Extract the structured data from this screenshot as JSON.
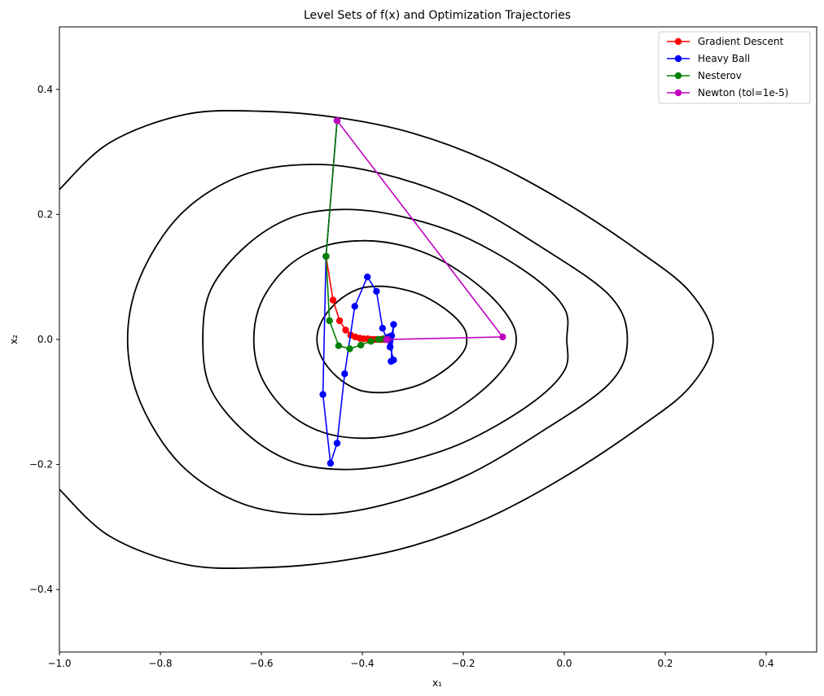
{
  "chart_data": {
    "type": "line",
    "title": "Level Sets of f(x) and Optimization Trajectories",
    "xlabel": "x₁",
    "ylabel": "x₂",
    "xlim": [
      -1.0,
      0.5
    ],
    "ylim": [
      -0.5,
      0.5
    ],
    "xticks": [
      -1.0,
      -0.8,
      -0.6,
      -0.4,
      -0.2,
      0.0,
      0.2,
      0.4
    ],
    "xtick_labels": [
      "−1.0",
      "−0.8",
      "−0.6",
      "−0.4",
      "−0.2",
      "0.0",
      "0.2",
      "0.4"
    ],
    "yticks": [
      -0.4,
      -0.2,
      0.0,
      0.2,
      0.4
    ],
    "ytick_labels": [
      "−0.4",
      "−0.2",
      "0.0",
      "0.2",
      "0.4"
    ],
    "grid": false,
    "legend_position": "top-right",
    "contours": [
      {
        "color": "#000000",
        "points": [
          [
            -0.37,
            0.085
          ],
          [
            -0.33,
            0.082
          ],
          [
            -0.28,
            0.07
          ],
          [
            -0.23,
            0.045
          ],
          [
            -0.2,
            0.02
          ],
          [
            -0.193,
            0.0
          ],
          [
            -0.2,
            -0.02
          ],
          [
            -0.23,
            -0.045
          ],
          [
            -0.28,
            -0.07
          ],
          [
            -0.33,
            -0.082
          ],
          [
            -0.37,
            -0.085
          ],
          [
            -0.41,
            -0.08
          ],
          [
            -0.45,
            -0.06
          ],
          [
            -0.48,
            -0.03
          ],
          [
            -0.49,
            0.0
          ],
          [
            -0.48,
            0.03
          ],
          [
            -0.45,
            0.06
          ],
          [
            -0.41,
            0.08
          ],
          [
            -0.37,
            0.085
          ]
        ]
      },
      {
        "color": "#000000",
        "points": [
          [
            -0.4,
            0.158
          ],
          [
            -0.32,
            0.15
          ],
          [
            -0.24,
            0.125
          ],
          [
            -0.16,
            0.08
          ],
          [
            -0.11,
            0.035
          ],
          [
            -0.095,
            0.0
          ],
          [
            -0.11,
            -0.035
          ],
          [
            -0.16,
            -0.08
          ],
          [
            -0.24,
            -0.125
          ],
          [
            -0.32,
            -0.15
          ],
          [
            -0.4,
            -0.158
          ],
          [
            -0.48,
            -0.148
          ],
          [
            -0.55,
            -0.115
          ],
          [
            -0.6,
            -0.06
          ],
          [
            -0.615,
            0.0
          ],
          [
            -0.6,
            0.06
          ],
          [
            -0.55,
            0.115
          ],
          [
            -0.48,
            0.148
          ],
          [
            -0.4,
            0.158
          ]
        ]
      },
      {
        "color": "#000000",
        "points": [
          [
            -0.44,
            0.208
          ],
          [
            -0.33,
            0.198
          ],
          [
            -0.2,
            0.165
          ],
          [
            -0.07,
            0.105
          ],
          [
            0.0,
            0.05
          ],
          [
            0.005,
            0.0
          ],
          [
            0.0,
            -0.05
          ],
          [
            -0.07,
            -0.105
          ],
          [
            -0.2,
            -0.165
          ],
          [
            -0.33,
            -0.198
          ],
          [
            -0.44,
            -0.208
          ],
          [
            -0.54,
            -0.195
          ],
          [
            -0.63,
            -0.15
          ],
          [
            -0.7,
            -0.08
          ],
          [
            -0.716,
            0.0
          ],
          [
            -0.7,
            0.08
          ],
          [
            -0.63,
            0.15
          ],
          [
            -0.54,
            0.195
          ],
          [
            -0.44,
            0.208
          ]
        ]
      },
      {
        "color": "#000000",
        "points": [
          [
            -0.5,
            0.28
          ],
          [
            -0.36,
            0.265
          ],
          [
            -0.2,
            0.22
          ],
          [
            -0.05,
            0.15
          ],
          [
            0.09,
            0.07
          ],
          [
            0.125,
            0.0
          ],
          [
            0.09,
            -0.07
          ],
          [
            -0.05,
            -0.15
          ],
          [
            -0.2,
            -0.22
          ],
          [
            -0.36,
            -0.265
          ],
          [
            -0.5,
            -0.28
          ],
          [
            -0.64,
            -0.262
          ],
          [
            -0.76,
            -0.2
          ],
          [
            -0.84,
            -0.1
          ],
          [
            -0.865,
            0.0
          ],
          [
            -0.84,
            0.1
          ],
          [
            -0.76,
            0.2
          ],
          [
            -0.64,
            0.262
          ],
          [
            -0.5,
            0.28
          ]
        ]
      },
      {
        "color": "#000000",
        "points": [
          [
            -1.0,
            0.24
          ],
          [
            -0.9,
            0.315
          ],
          [
            -0.75,
            0.36
          ],
          [
            -0.6,
            0.365
          ],
          [
            -0.45,
            0.355
          ],
          [
            -0.3,
            0.33
          ],
          [
            -0.15,
            0.285
          ],
          [
            0.0,
            0.22
          ],
          [
            0.15,
            0.14
          ],
          [
            0.25,
            0.075
          ],
          [
            0.295,
            0.0
          ],
          [
            0.25,
            -0.075
          ],
          [
            0.15,
            -0.14
          ],
          [
            0.0,
            -0.22
          ],
          [
            -0.15,
            -0.285
          ],
          [
            -0.3,
            -0.33
          ],
          [
            -0.45,
            -0.355
          ],
          [
            -0.6,
            -0.365
          ],
          [
            -0.75,
            -0.36
          ],
          [
            -0.9,
            -0.315
          ],
          [
            -1.0,
            -0.24
          ]
        ]
      }
    ],
    "series": [
      {
        "name": "Gradient Descent",
        "color": "#ff0000",
        "x": [
          -0.45,
          -0.472,
          -0.458,
          -0.445,
          -0.433,
          -0.423,
          -0.414,
          -0.405,
          -0.397,
          -0.389,
          -0.381,
          -0.374,
          -0.367,
          -0.362,
          -0.358,
          -0.355,
          -0.353,
          -0.352
        ],
        "y": [
          0.35,
          0.133,
          0.063,
          0.03,
          0.015,
          0.007,
          0.004,
          0.002,
          0.001,
          0.001,
          0.0,
          0.0,
          0.0,
          0.0,
          0.0,
          0.0,
          0.0,
          0.0
        ]
      },
      {
        "name": "Heavy Ball",
        "color": "#0000ff",
        "x": [
          -0.45,
          -0.472,
          -0.478,
          -0.463,
          -0.45,
          -0.435,
          -0.415,
          -0.39,
          -0.372,
          -0.36,
          -0.345,
          -0.338,
          -0.343,
          -0.338,
          -0.345,
          -0.342,
          -0.348,
          -0.345,
          -0.35,
          -0.347
        ],
        "y": [
          0.35,
          0.133,
          -0.088,
          -0.198,
          -0.166,
          -0.055,
          0.053,
          0.1,
          0.077,
          0.018,
          -0.012,
          0.024,
          -0.035,
          -0.033,
          -0.012,
          0.006,
          0.004,
          -0.002,
          0.003,
          0.0
        ]
      },
      {
        "name": "Nesterov",
        "color": "#008000",
        "x": [
          -0.45,
          -0.472,
          -0.465,
          -0.447,
          -0.425,
          -0.403,
          -0.383,
          -0.368,
          -0.358,
          -0.352,
          -0.35
        ],
        "y": [
          0.35,
          0.133,
          0.03,
          -0.01,
          -0.015,
          -0.009,
          -0.003,
          0.0,
          0.001,
          0.0,
          0.0
        ]
      },
      {
        "name": "Newton (tol=1e-5)",
        "color": "#c000c0",
        "x": [
          -0.45,
          -0.122,
          -0.35,
          -0.352
        ],
        "y": [
          0.35,
          0.004,
          0.0,
          0.0
        ]
      }
    ]
  }
}
